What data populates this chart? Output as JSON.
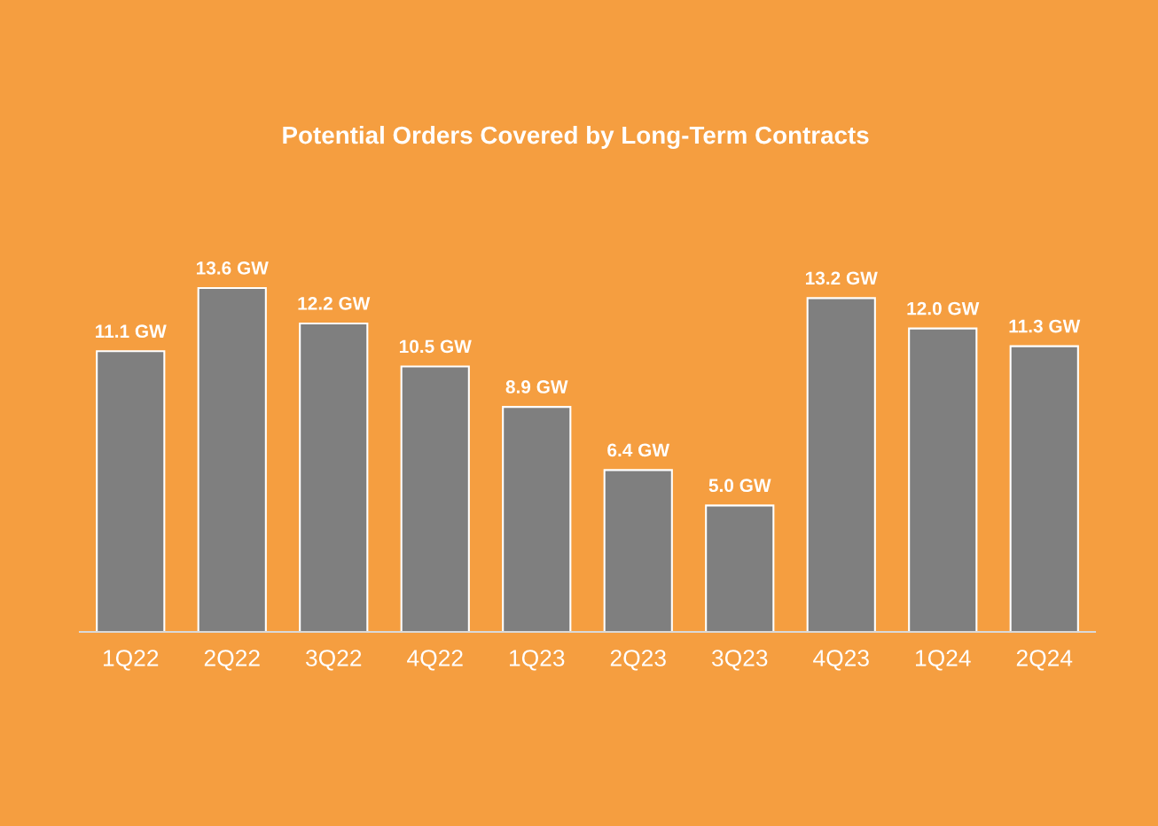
{
  "chart_data": {
    "type": "bar",
    "title": "Potential Orders Covered by Long-Term Contracts",
    "categories": [
      "1Q22",
      "2Q22",
      "3Q22",
      "4Q22",
      "1Q23",
      "2Q23",
      "3Q23",
      "4Q23",
      "1Q24",
      "2Q24"
    ],
    "values": [
      11.1,
      13.6,
      12.2,
      10.5,
      8.9,
      6.4,
      5.0,
      13.2,
      12.0,
      11.3
    ],
    "value_labels": [
      "11.1 GW",
      "13.6 GW",
      "12.2 GW",
      "10.5 GW",
      "8.9 GW",
      "6.4 GW",
      "5.0 GW",
      "13.2 GW",
      "12.0 GW",
      "11.3 GW"
    ],
    "color": "#7f7f7f",
    "grid": false,
    "legend": false
  }
}
